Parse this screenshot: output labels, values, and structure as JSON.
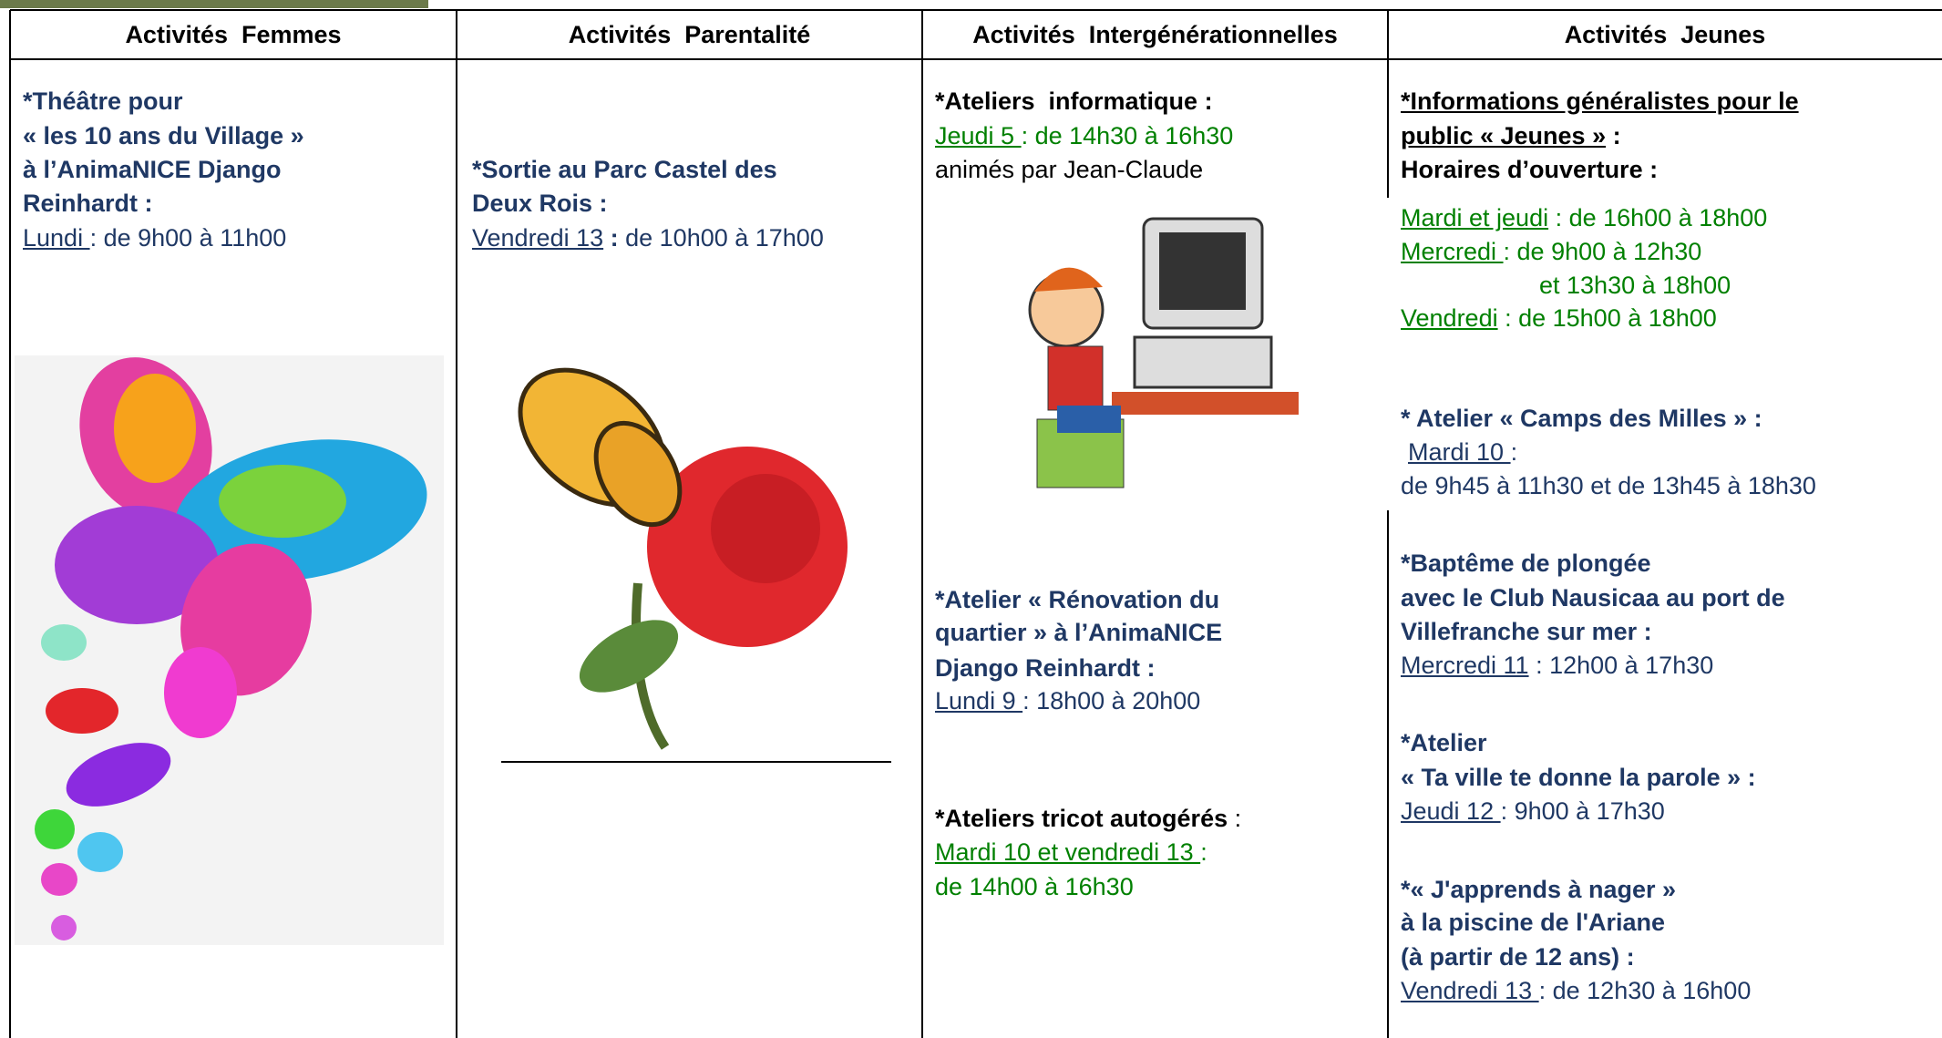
{
  "header": {
    "columns": [
      "Activités  Femmes",
      "Activités  Parentalité",
      "Activités  Intergénérationnelles",
      "Activités  Jeunes"
    ]
  },
  "femmes": {
    "title": [
      "*Théâtre pour",
      "« les 10 ans du Village »",
      "à l’AnimaNICE Django",
      "Reinhardt :"
    ],
    "day": "Lundi ",
    "time": ": de 9h00 à 11h00"
  },
  "parentalite": {
    "title": [
      "*Sortie au Parc Castel des",
      "Deux Rois :"
    ],
    "day": "Vendredi 13",
    "sep": " :",
    "time": " de 10h00 à 17h00"
  },
  "intergen": {
    "items": [
      {
        "title": "*Ateliers  informatique :",
        "day": "Jeudi 5 ",
        "time": ": de 14h30 à 16h30",
        "note": "animés par Jean-Claude"
      },
      {
        "title": [
          "*Atelier « Rénovation du",
          "quartier » à l’AnimaNICE",
          "Django Reinhardt :"
        ],
        "day": "Lundi 9 ",
        "time": ": 18h00 à 20h00"
      },
      {
        "title": "*Ateliers tricot autogérés",
        "sep": " :",
        "day": "Mardi 10 et vendredi 13 ",
        "time": ":",
        "time2": "de 14h00 à 16h30"
      }
    ]
  },
  "jeunes": {
    "info": {
      "title": [
        "*Informations généralistes pour le",
        "public « Jeunes »"
      ],
      "sep": " :",
      "hours_title": "Horaires d’ouverture :",
      "schedule": [
        {
          "day": "Mardi et jeudi",
          "time": " : de 16h00 à 18h00"
        },
        {
          "day": "Mercredi ",
          "time": ": de 9h00 à 12h30"
        },
        {
          "time": "et 13h30 à 18h00"
        },
        {
          "day": "Vendredi",
          "time": " : de 15h00 à 18h00"
        }
      ]
    },
    "items": [
      {
        "title": [
          "* Atelier « Camps des Milles » :"
        ],
        "day": "Mardi 10 ",
        "time": ":",
        "time2": "de 9h45 à 11h30 et de 13h45 à 18h30"
      },
      {
        "title": [
          "*Baptême de plongée",
          "avec le Club Nausicaa au port de",
          "Villefranche sur mer :"
        ],
        "day": "Mercredi 11",
        "time": " : 12h00 à 17h30"
      },
      {
        "title": [
          "*Atelier",
          "« Ta ville te donne la parole » :"
        ],
        "day": "Jeudi 12 ",
        "time": ": 9h00 à 17h30"
      },
      {
        "title": [
          "*« J'apprends à nager »",
          "à la piscine de l'Ariane",
          "(à partir de 12 ans) :"
        ],
        "day": "Vendredi 13 ",
        "time": ": de 12h30 à 16h00"
      }
    ]
  }
}
